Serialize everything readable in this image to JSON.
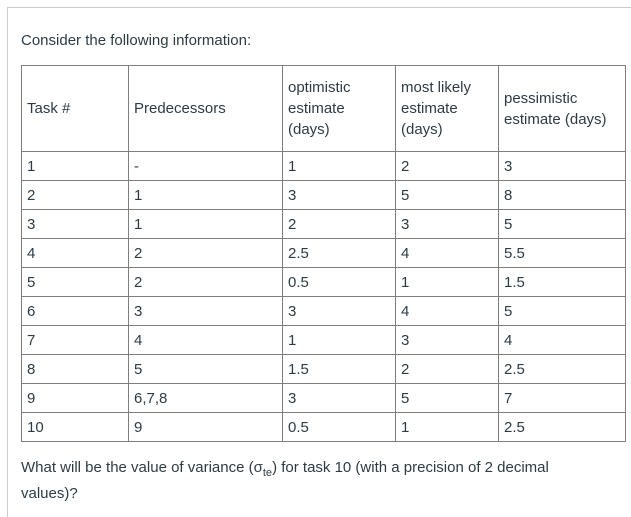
{
  "page": {
    "intro": "Consider the following information:",
    "question": {
      "prefix": "What will be the value of variance (σ",
      "subscript": "te",
      "suffix": ") for task 10 (with a precision of 2 decimal values)?"
    }
  },
  "table": {
    "headers": [
      "Task #",
      "Predecessors",
      "optimistic estimate (days)",
      "most likely estimate (days)",
      "pessimistic estimate (days)"
    ],
    "rows": [
      [
        "1",
        "-",
        "1",
        "2",
        "3"
      ],
      [
        "2",
        "1",
        "3",
        "5",
        "8"
      ],
      [
        "3",
        "1",
        "2",
        "3",
        "5"
      ],
      [
        "4",
        "2",
        "2.5",
        "4",
        "5.5"
      ],
      [
        "5",
        "2",
        "0.5",
        "1",
        "1.5"
      ],
      [
        "6",
        "3",
        "3",
        "4",
        "5"
      ],
      [
        "7",
        "4",
        "1",
        "3",
        "4"
      ],
      [
        "8",
        "5",
        "1.5",
        "2",
        "2.5"
      ],
      [
        "9",
        "6,7,8",
        "3",
        "5",
        "7"
      ],
      [
        "10",
        "9",
        "0.5",
        "1",
        "2.5"
      ]
    ]
  },
  "colors": {
    "background": "#ffffff",
    "text": "#2d3b45",
    "table_border": "#7e7e7e",
    "card_border": "#c7cdd1"
  }
}
